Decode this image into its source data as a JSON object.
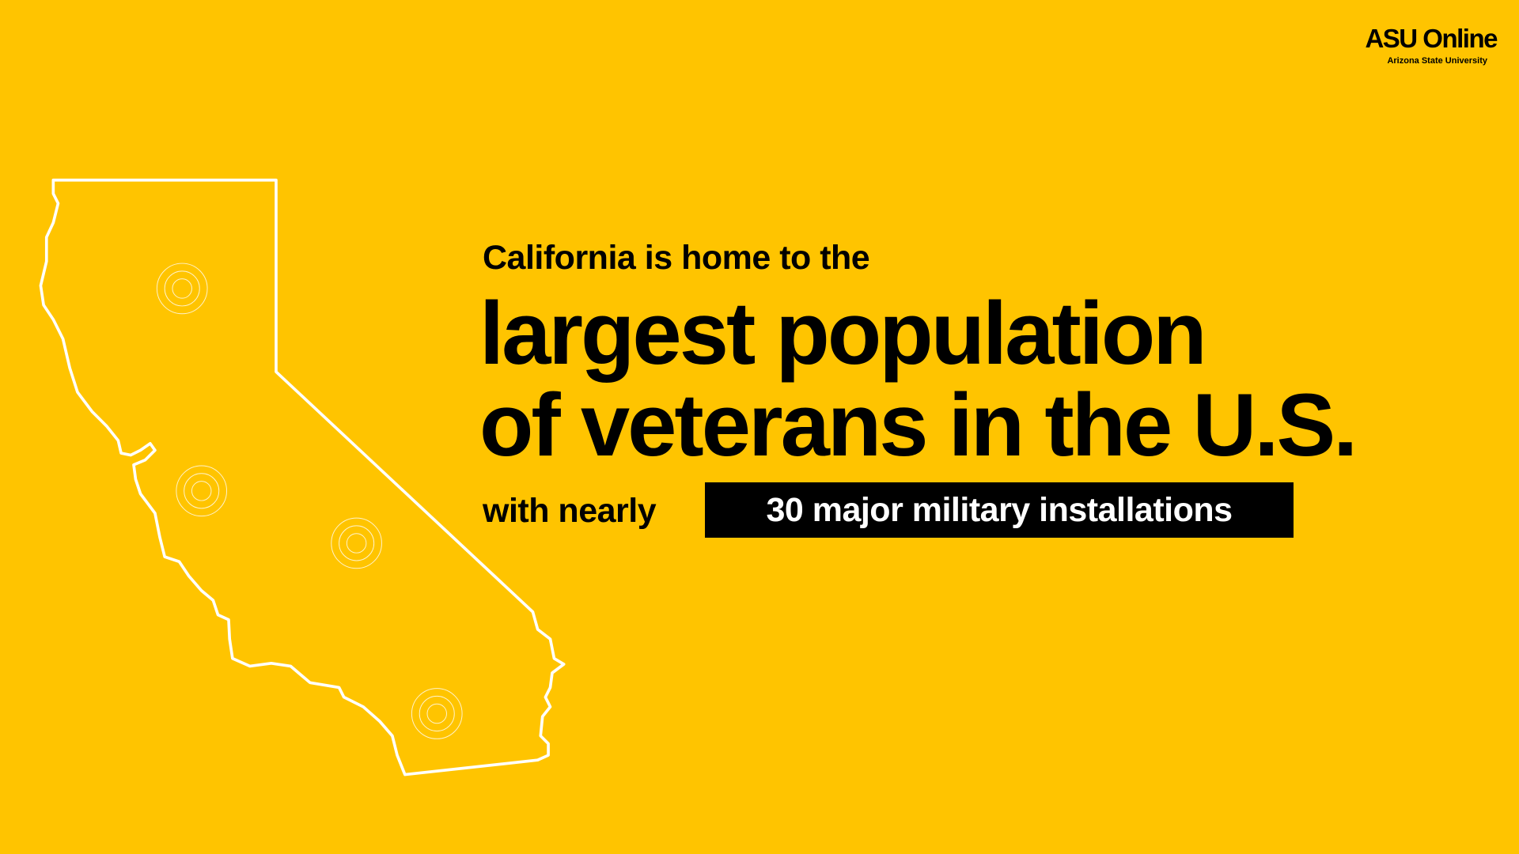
{
  "logo": {
    "name": "ASU Online",
    "subtitle": "Arizona State University"
  },
  "intro": "California is home to the",
  "headline": [
    "largest population",
    "of veterans in the U.S."
  ],
  "detail": {
    "lead": "with nearly",
    "highlight": "30 major military installations"
  }
}
